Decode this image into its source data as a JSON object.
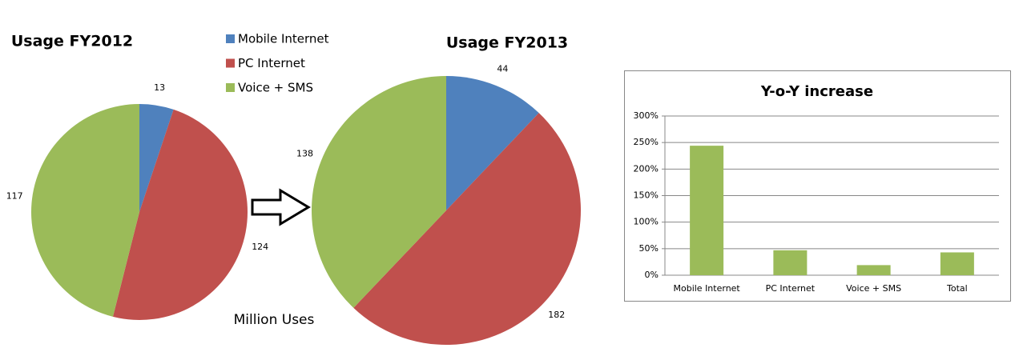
{
  "chart_data": [
    {
      "type": "pie",
      "title": "Usage FY2012",
      "categories": [
        "Mobile Internet",
        "PC Internet",
        "Voice + SMS"
      ],
      "colors": [
        "#4f81bd",
        "#c0504d",
        "#9bbb59"
      ],
      "values": [
        13,
        124,
        117
      ],
      "legend": true,
      "annotation": "Million Uses"
    },
    {
      "type": "pie",
      "title": "Usage FY2013",
      "colors": [
        "#4f81bd",
        "#c0504d",
        "#9bbb59"
      ],
      "values": [
        44,
        182,
        138
      ]
    },
    {
      "type": "bar",
      "title": "Y-o-Y increase",
      "categories": [
        "Mobile Internet",
        "PC Internet",
        "Voice + SMS",
        "Total"
      ],
      "values": [
        244,
        47,
        19,
        43
      ],
      "color": "#9bbb59",
      "ylim": [
        0,
        300
      ],
      "yticks": [
        {
          "value": 0,
          "label": "0%"
        },
        {
          "value": 50,
          "label": "50%"
        },
        {
          "value": 100,
          "label": "100%"
        },
        {
          "value": 150,
          "label": "150%"
        },
        {
          "value": 200,
          "label": "200%"
        },
        {
          "value": 250,
          "label": "250%"
        },
        {
          "value": 300,
          "label": "300%"
        }
      ],
      "grid": true
    }
  ]
}
